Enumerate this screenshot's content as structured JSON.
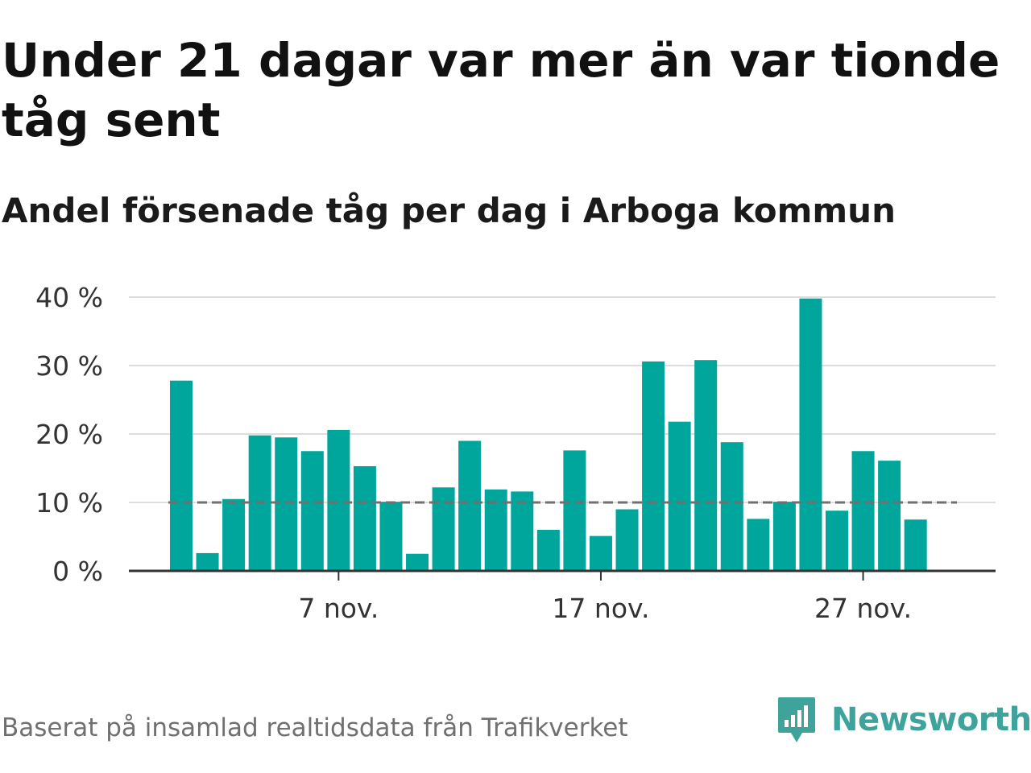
{
  "title": "Under 21 dagar var mer än var tionde tåg sent",
  "subtitle": "Andel försenade tåg per dag i Arboga kommun",
  "footer": {
    "source": "Baserat på insamlad realtidsdata från Trafikverket",
    "brand": "Newsworthy",
    "logo_icon": "newsworthy-logo-icon"
  },
  "colors": {
    "bar": "#00a59b",
    "reference_line": "#707070",
    "grid": "#dddddd",
    "axis": "#333333",
    "brand": "#3ea39a"
  },
  "chart_data": {
    "type": "bar",
    "x": [
      "1 nov.",
      "2 nov.",
      "3 nov.",
      "4 nov.",
      "5 nov.",
      "6 nov.",
      "7 nov.",
      "8 nov.",
      "9 nov.",
      "10 nov.",
      "11 nov.",
      "12 nov.",
      "13 nov.",
      "14 nov.",
      "15 nov.",
      "16 nov.",
      "17 nov.",
      "18 nov.",
      "19 nov.",
      "20 nov.",
      "21 nov.",
      "22 nov.",
      "23 nov.",
      "24 nov.",
      "25 nov.",
      "26 nov.",
      "27 nov.",
      "28 nov.",
      "29 nov."
    ],
    "values": [
      27.8,
      2.6,
      10.5,
      19.8,
      19.5,
      17.5,
      20.6,
      15.3,
      10.1,
      2.5,
      12.2,
      19.0,
      11.9,
      11.6,
      6.0,
      17.6,
      5.1,
      9.0,
      30.6,
      21.8,
      30.8,
      18.8,
      7.6,
      10.1,
      39.8,
      8.8,
      17.5,
      16.1,
      7.5
    ],
    "xticks": [
      "7 nov.",
      "17 nov.",
      "27 nov."
    ],
    "yticks": [
      "0 %",
      "10 %",
      "20 %",
      "30 %",
      "40 %"
    ],
    "ylim": [
      0,
      40
    ],
    "reference_line": 10,
    "grid": true
  }
}
